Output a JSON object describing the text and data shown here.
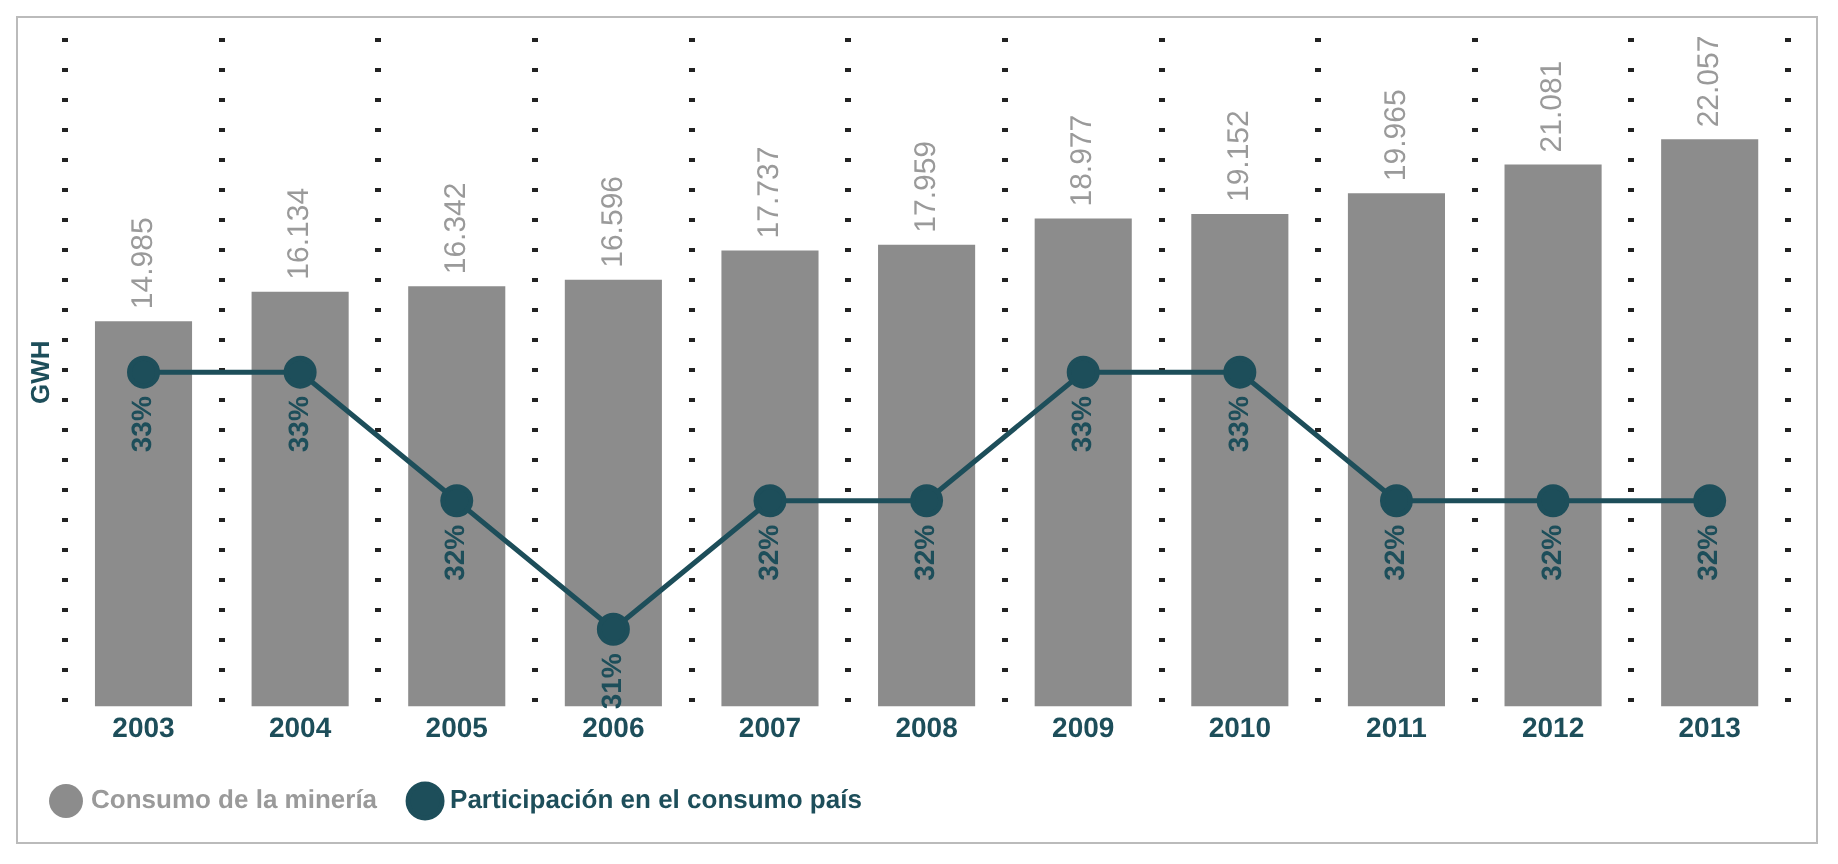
{
  "chart_data": {
    "type": "bar",
    "ylabel": "GWH",
    "categories": [
      "2003",
      "2004",
      "2005",
      "2006",
      "2007",
      "2008",
      "2009",
      "2010",
      "2011",
      "2012",
      "2013"
    ],
    "series": [
      {
        "name": "Consumo de la minería",
        "color": "#8c8c8c",
        "values": [
          14985,
          16134,
          16342,
          16596,
          17737,
          17959,
          18977,
          19152,
          19965,
          21081,
          22057
        ],
        "value_labels": [
          "14.985",
          "16.134",
          "16.342",
          "16.596",
          "17.737",
          "17.959",
          "18.977",
          "19.152",
          "19.965",
          "21.081",
          "22.057"
        ]
      },
      {
        "name": "Participación en el consumo país",
        "type": "line",
        "axis": "y2",
        "color": "#1d4e5a",
        "values": [
          33,
          33,
          32,
          31,
          32,
          32,
          33,
          33,
          32,
          32,
          32
        ],
        "value_labels": [
          "33%",
          "33%",
          "32%",
          "31%",
          "32%",
          "32%",
          "33%",
          "33%",
          "32%",
          "32%",
          "32%"
        ]
      }
    ],
    "ylim": [
      0,
      26000
    ],
    "y2lim": [
      30.4,
      35.6
    ],
    "grid": "x",
    "legend": "bottom left",
    "marker": "circle"
  }
}
